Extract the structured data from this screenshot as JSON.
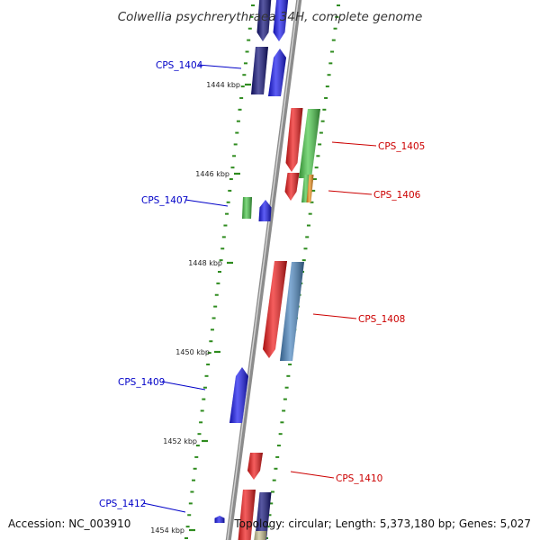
{
  "title": "Colwellia psychrerythraea 34H, complete genome",
  "footer": {
    "accession": "Accession: NC_003910",
    "summary": "Topology: circular; Length: 5,373,180 bp; Genes: 5,027"
  },
  "colors": {
    "backbone": "#8c8c8c",
    "tick": "#2e8b1e",
    "forward_label": "#0000c8",
    "reverse_label": "#cc0000",
    "navy": "#10107a",
    "blue": "#1818f0",
    "red": "#f01818",
    "green": "#48c848",
    "orange": "#f09018",
    "steel": "#4a86c0",
    "khaki": "#c8c090"
  },
  "scale": [
    {
      "label": "1444 kbp"
    },
    {
      "label": "1446 kbp"
    },
    {
      "label": "1448 kbp"
    },
    {
      "label": "1450 kbp"
    },
    {
      "label": "1452 kbp"
    },
    {
      "label": "1454 kbp"
    }
  ],
  "gene_labels": [
    {
      "name": "CPS_1404",
      "strand": "forward"
    },
    {
      "name": "CPS_1405",
      "strand": "reverse"
    },
    {
      "name": "CPS_1406",
      "strand": "reverse"
    },
    {
      "name": "CPS_1407",
      "strand": "forward"
    },
    {
      "name": "CPS_1408",
      "strand": "reverse"
    },
    {
      "name": "CPS_1409",
      "strand": "forward"
    },
    {
      "name": "CPS_1410",
      "strand": "reverse"
    },
    {
      "name": "CPS_1412",
      "strand": "forward"
    }
  ],
  "features": [
    {
      "name": "cds-upper-navy",
      "color": "navy"
    },
    {
      "name": "cds-upper-blue",
      "color": "blue"
    },
    {
      "name": "cds-1404-navy",
      "color": "navy"
    },
    {
      "name": "cds-1404-blue",
      "color": "blue"
    },
    {
      "name": "cds-1405-red",
      "color": "red"
    },
    {
      "name": "cds-1405-green",
      "color": "green"
    },
    {
      "name": "cds-1406-red",
      "color": "red"
    },
    {
      "name": "cds-1406-green",
      "color": "green"
    },
    {
      "name": "cds-1406-orange",
      "color": "orange"
    },
    {
      "name": "cds-1407-green",
      "color": "green"
    },
    {
      "name": "cds-1407-blue",
      "color": "blue"
    },
    {
      "name": "cds-1408-red",
      "color": "red"
    },
    {
      "name": "cds-1408-steel",
      "color": "steel"
    },
    {
      "name": "cds-1409-blue",
      "color": "blue"
    },
    {
      "name": "cds-1410-red",
      "color": "red"
    },
    {
      "name": "cds-lower-red",
      "color": "red"
    },
    {
      "name": "cds-lower-navy",
      "color": "navy"
    },
    {
      "name": "cds-lower-khaki",
      "color": "khaki"
    },
    {
      "name": "cds-1412-blue",
      "color": "blue"
    }
  ]
}
